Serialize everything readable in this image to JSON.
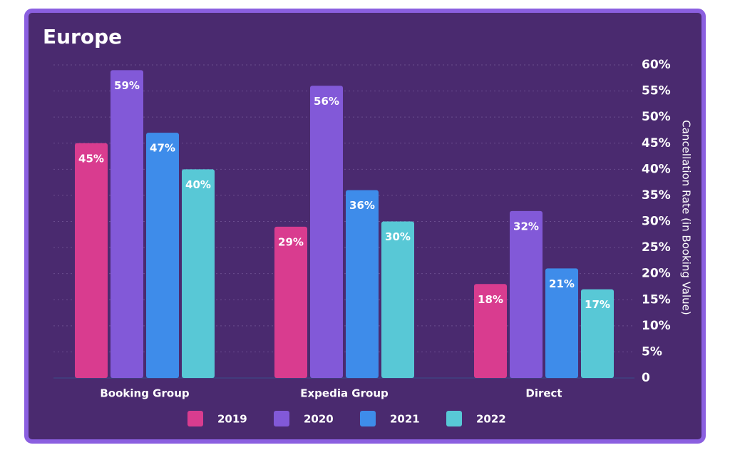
{
  "chart_data": {
    "type": "bar",
    "title": "Europe",
    "categories": [
      "Booking Group",
      "Expedia Group",
      "Direct"
    ],
    "series": [
      {
        "name": "2019",
        "color": "#d93c8f",
        "values": [
          45,
          29,
          18
        ],
        "value_labels": [
          "45%",
          "29%",
          "18%"
        ]
      },
      {
        "name": "2020",
        "color": "#8259d8",
        "values": [
          59,
          56,
          32
        ],
        "value_labels": [
          "59%",
          "56%",
          "32%"
        ]
      },
      {
        "name": "2021",
        "color": "#3e8cea",
        "values": [
          47,
          36,
          21
        ],
        "value_labels": [
          "47%",
          "36%",
          "21%"
        ]
      },
      {
        "name": "2022",
        "color": "#58c8d6",
        "values": [
          40,
          30,
          17
        ],
        "value_labels": [
          "40%",
          "30%",
          "17%"
        ]
      }
    ],
    "ylabel": "Cancellation Rate (in Booking Value)",
    "ylim": [
      0,
      60
    ],
    "yticks": [
      0,
      {
        "value": 5,
        "label": "5%"
      },
      {
        "value": 10,
        "label": "10%"
      },
      {
        "value": 15,
        "label": "15%"
      },
      {
        "value": 20,
        "label": "20%"
      },
      {
        "value": 25,
        "label": "25%"
      },
      {
        "value": 30,
        "label": "30%"
      },
      {
        "value": 35,
        "label": "35%"
      },
      {
        "value": 40,
        "label": "40%"
      },
      {
        "value": 45,
        "label": "45%"
      },
      {
        "value": 50,
        "label": "50%"
      },
      {
        "value": 55,
        "label": "55%"
      },
      {
        "value": 60,
        "label": "60%"
      }
    ],
    "y_axis_side": "right",
    "grid": true,
    "legend": "bottom"
  }
}
